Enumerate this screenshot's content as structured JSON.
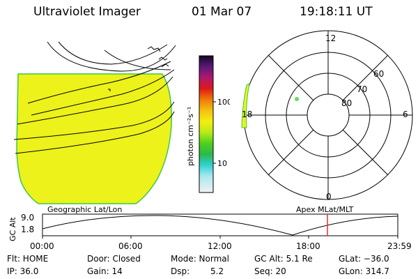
{
  "header": {
    "title": "Ultraviolet Imager",
    "date": "01 Mar 07",
    "time": "19:18:11 UT"
  },
  "colorbar": {
    "unit_label": "photon cm⁻²s⁻¹",
    "ticks": [
      "100",
      "10"
    ]
  },
  "polar": {
    "mlt_labels": {
      "top": "12",
      "left": "18",
      "right": "6",
      "bottom": "0"
    },
    "lat_labels": [
      "60",
      "70",
      "80"
    ]
  },
  "timeline": {
    "left_label": "Geographic Lat/Lon",
    "right_label": "Apex MLat/MLT",
    "axis_label": "GC Alt",
    "y_top": "9.0",
    "y_bottom": "1.8",
    "x_labels": [
      "00:00",
      "06:00",
      "12:00",
      "18:00",
      "23:59"
    ],
    "marker_color": "#e03030"
  },
  "status": {
    "flt": "Flt: HOME",
    "ip": "IP: 36.0",
    "door": "Door: Closed",
    "gain": "Gain: 14",
    "mode": "Mode: Normal",
    "dsp_label": "Dsp:",
    "dsp_value": "5.2",
    "gc_alt": "GC Alt: 5.1 Re",
    "seq": "Seq: 20",
    "glat": "GLat: −36.0",
    "glon": "GLon: 314.7"
  },
  "colors": {
    "emission": "#ecf21a",
    "emission_edge": "#39c94a",
    "dot": "#5be05b"
  }
}
